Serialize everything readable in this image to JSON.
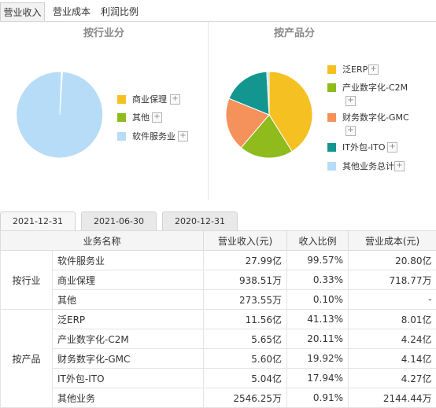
{
  "top_tabs": [
    {
      "label": "营业收入",
      "active": true
    },
    {
      "label": "营业成本",
      "active": false
    },
    {
      "label": "利润比例",
      "active": false
    }
  ],
  "industry_chart": {
    "title": "按行业分",
    "legend": [
      "商业保理",
      "其他",
      "软件服务业"
    ]
  },
  "product_chart": {
    "title": "按产品分",
    "legend": [
      "泛ERP",
      "产业数字化-C2M",
      "财务数字化-GMC",
      "IT外包-ITO",
      "其他业务总计"
    ]
  },
  "chart_data": [
    {
      "type": "pie",
      "title": "按行业分",
      "labels": [
        "软件服务业",
        "商业保理",
        "其他"
      ],
      "values": [
        99.57,
        0.33,
        0.1
      ],
      "colors": [
        "#b7dcf7",
        "#f5c022",
        "#8fbb1d"
      ],
      "legend_position": "right"
    },
    {
      "type": "pie",
      "title": "按产品分",
      "labels": [
        "泛ERP",
        "产业数字化-C2M",
        "财务数字化-GMC",
        "IT外包-ITO",
        "其他业务总计"
      ],
      "values": [
        41.13,
        20.11,
        19.92,
        17.94,
        0.91
      ],
      "colors": [
        "#f5c022",
        "#8fbb1d",
        "#f5915a",
        "#12968f",
        "#b7dcf7"
      ],
      "legend_position": "right"
    }
  ],
  "date_tabs": [
    {
      "label": "2021-12-31",
      "active": true
    },
    {
      "label": "2021-06-30",
      "active": false
    },
    {
      "label": "2020-12-31",
      "active": false
    }
  ],
  "table": {
    "headers": [
      "业务名称",
      "营业收入(元)",
      "收入比例",
      "营业成本(元)"
    ],
    "groups": [
      {
        "label": "按行业",
        "rows": [
          {
            "name": "软件服务业",
            "revenue": "27.99亿",
            "ratio": "99.57%",
            "cost": "20.80亿"
          },
          {
            "name": "商业保理",
            "revenue": "938.51万",
            "ratio": "0.33%",
            "cost": "718.77万"
          },
          {
            "name": "其他",
            "revenue": "273.55万",
            "ratio": "0.10%",
            "cost": "-"
          }
        ]
      },
      {
        "label": "按产品",
        "rows": [
          {
            "name": "泛ERP",
            "revenue": "11.56亿",
            "ratio": "41.13%",
            "cost": "8.01亿"
          },
          {
            "name": "产业数字化-C2M",
            "revenue": "5.65亿",
            "ratio": "20.11%",
            "cost": "4.24亿"
          },
          {
            "name": "财务数字化-GMC",
            "revenue": "5.60亿",
            "ratio": "19.92%",
            "cost": "4.14亿"
          },
          {
            "name": "IT外包-ITO",
            "revenue": "5.04亿",
            "ratio": "17.94%",
            "cost": "4.27亿"
          },
          {
            "name": "其他业务",
            "revenue": "2546.25万",
            "ratio": "0.91%",
            "cost": "2144.44万"
          }
        ]
      }
    ]
  }
}
